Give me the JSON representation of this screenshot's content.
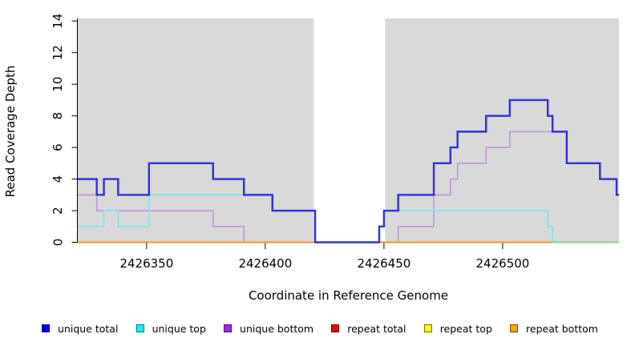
{
  "chart_data": {
    "type": "line",
    "subtype": "step-coverage",
    "xlabel": "Coordinate in Reference Genome",
    "ylabel": "Read Coverage Depth",
    "xlim": [
      2426321,
      2426549
    ],
    "ylim": [
      0,
      14
    ],
    "x_ticks": [
      2426350,
      2426400,
      2426450,
      2426500
    ],
    "y_ticks": [
      0,
      2,
      4,
      6,
      8,
      10,
      12,
      14
    ],
    "grid": "off",
    "plot_background": "#d9d9d9",
    "gap_region": {
      "from": 2426420.5,
      "to": 2426450.5,
      "color": "#ffffff"
    },
    "legend_position": "bottom",
    "series": [
      {
        "name": "unique total",
        "line_color": "#2e2edd",
        "legend_color": "#0000ee",
        "line_width": 2.4,
        "steps": [
          [
            2426321,
            4
          ],
          [
            2426329,
            3
          ],
          [
            2426332,
            4
          ],
          [
            2426338,
            3
          ],
          [
            2426351,
            5
          ],
          [
            2426378,
            4
          ],
          [
            2426391,
            3
          ],
          [
            2426403,
            2
          ],
          [
            2426421,
            0
          ],
          [
            2426448,
            1
          ],
          [
            2426450,
            2
          ],
          [
            2426456,
            3
          ],
          [
            2426471,
            5
          ],
          [
            2426478,
            6
          ],
          [
            2426481,
            7
          ],
          [
            2426493,
            8
          ],
          [
            2426503,
            9
          ],
          [
            2426519,
            8
          ],
          [
            2426521,
            7
          ],
          [
            2426527,
            5
          ],
          [
            2426541,
            4
          ],
          [
            2426548,
            3
          ]
        ]
      },
      {
        "name": "unique top",
        "line_color": "#7de7e9",
        "legend_color": "#00ffff",
        "line_width": 1.8,
        "steps": [
          [
            2426321,
            1
          ],
          [
            2426332,
            2
          ],
          [
            2426338,
            1
          ],
          [
            2426351,
            3
          ],
          [
            2426403,
            2
          ],
          [
            2426421,
            0
          ],
          [
            2426448,
            1
          ],
          [
            2426450,
            2
          ],
          [
            2426519,
            1
          ],
          [
            2426521,
            0
          ]
        ]
      },
      {
        "name": "unique bottom",
        "line_color": "#c09bdf",
        "legend_color": "#a228e8",
        "line_width": 1.8,
        "steps": [
          [
            2426321,
            3
          ],
          [
            2426329,
            2
          ],
          [
            2426378,
            1
          ],
          [
            2426391,
            0
          ],
          [
            2426456,
            1
          ],
          [
            2426471,
            3
          ],
          [
            2426478,
            4
          ],
          [
            2426481,
            5
          ],
          [
            2426493,
            6
          ],
          [
            2426503,
            7
          ],
          [
            2426527,
            5
          ],
          [
            2426541,
            4
          ],
          [
            2426548,
            3
          ]
        ]
      },
      {
        "name": "repeat total",
        "line_color": "#e02222",
        "legend_color": "#ee0000",
        "line_width": 1.6,
        "steps": [
          [
            2426321,
            0
          ]
        ]
      },
      {
        "name": "repeat top",
        "line_color": "#f0f010",
        "legend_color": "#ffff00",
        "line_width": 1.6,
        "steps": [
          [
            2426321,
            0
          ]
        ]
      },
      {
        "name": "repeat bottom",
        "line_color": "#ff9414",
        "legend_color": "#ffa500",
        "line_width": 2.0,
        "steps": [
          [
            2426321,
            0
          ]
        ]
      }
    ],
    "render_hints": {
      "draw_order": [
        "repeat total",
        "repeat top",
        "unique bottom",
        "repeat bottom",
        "unique top",
        "unique total"
      ],
      "cyan_orange_overlap": {
        "from": 2426521,
        "to": 2426549,
        "value": 0,
        "color": "#95cd96"
      }
    }
  }
}
